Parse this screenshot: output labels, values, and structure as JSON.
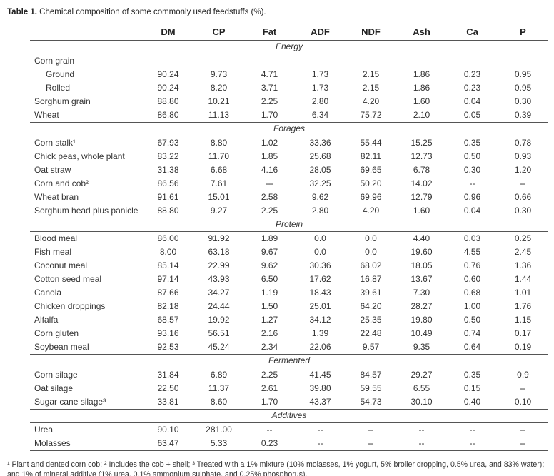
{
  "caption": {
    "label": "Table 1.",
    "text": " Chemical composition of some commonly used feedstuffs (%)."
  },
  "table": {
    "columns": [
      "",
      "DM",
      "CP",
      "Fat",
      "ADF",
      "NDF",
      "Ash",
      "Ca",
      "P"
    ],
    "sections": [
      {
        "name": "Energy",
        "rows": [
          {
            "label": "Corn grain",
            "indent": 0,
            "values": [
              "",
              "",
              "",
              "",
              "",
              "",
              "",
              ""
            ]
          },
          {
            "label": "Ground",
            "indent": 1,
            "values": [
              "90.24",
              "9.73",
              "4.71",
              "1.73",
              "2.15",
              "1.86",
              "0.23",
              "0.95"
            ]
          },
          {
            "label": "Rolled",
            "indent": 1,
            "values": [
              "90.24",
              "8.20",
              "3.71",
              "1.73",
              "2.15",
              "1.86",
              "0.23",
              "0.95"
            ]
          },
          {
            "label": "Sorghum grain",
            "indent": 0,
            "values": [
              "88.80",
              "10.21",
              "2.25",
              "2.80",
              "4.20",
              "1.60",
              "0.04",
              "0.30"
            ]
          },
          {
            "label": "Wheat",
            "indent": 0,
            "values": [
              "86.80",
              "11.13",
              "1.70",
              "6.34",
              "75.72",
              "2.10",
              "0.05",
              "0.39"
            ]
          }
        ]
      },
      {
        "name": "Forages",
        "rows": [
          {
            "label": "Corn stalk¹",
            "indent": 0,
            "values": [
              "67.93",
              "8.80",
              "1.02",
              "33.36",
              "55.44",
              "15.25",
              "0.35",
              "0.78"
            ]
          },
          {
            "label": "Chick peas, whole plant",
            "indent": 0,
            "values": [
              "83.22",
              "11.70",
              "1.85",
              "25.68",
              "82.11",
              "12.73",
              "0.50",
              "0.93"
            ]
          },
          {
            "label": "Oat straw",
            "indent": 0,
            "values": [
              "31.38",
              "6.68",
              "4.16",
              "28.05",
              "69.65",
              "6.78",
              "0.30",
              "1.20"
            ]
          },
          {
            "label": "Corn and cob²",
            "indent": 0,
            "values": [
              "86.56",
              "7.61",
              "---",
              "32.25",
              "50.20",
              "14.02",
              "--",
              "--"
            ]
          },
          {
            "label": "Wheat bran",
            "indent": 0,
            "values": [
              "91.61",
              "15.01",
              "2.58",
              "9.62",
              "69.96",
              "12.79",
              "0.96",
              "0.66"
            ]
          },
          {
            "label": "Sorghum head plus panicle",
            "indent": 0,
            "values": [
              "88.80",
              "9.27",
              "2.25",
              "2.80",
              "4.20",
              "1.60",
              "0.04",
              "0.30"
            ]
          }
        ]
      },
      {
        "name": "Protein",
        "rows": [
          {
            "label": "Blood meal",
            "indent": 0,
            "values": [
              "86.00",
              "91.92",
              "1.89",
              "0.0",
              "0.0",
              "4.40",
              "0.03",
              "0.25"
            ]
          },
          {
            "label": "Fish meal",
            "indent": 0,
            "values": [
              "8.00",
              "63.18",
              "9.67",
              "0.0",
              "0.0",
              "19.60",
              "4.55",
              "2.45"
            ]
          },
          {
            "label": "Coconut meal",
            "indent": 0,
            "values": [
              "85.14",
              "22.99",
              "9.62",
              "30.36",
              "68.02",
              "18.05",
              "0.76",
              "1.36"
            ]
          },
          {
            "label": "Cotton seed meal",
            "indent": 0,
            "values": [
              "97.14",
              "43.93",
              "6.50",
              "17.62",
              "16.87",
              "13.67",
              "0.60",
              "1.44"
            ]
          },
          {
            "label": "Canola",
            "indent": 0,
            "values": [
              "87.66",
              "34.27",
              "1.19",
              "18.43",
              "39.61",
              "7.30",
              "0.68",
              "1.01"
            ]
          },
          {
            "label": "Chicken droppings",
            "indent": 0,
            "values": [
              "82.18",
              "24.44",
              "1.50",
              "25.01",
              "64.20",
              "28.27",
              "1.00",
              "1.76"
            ]
          },
          {
            "label": "Alfalfa",
            "indent": 0,
            "values": [
              "68.57",
              "19.92",
              "1.27",
              "34.12",
              "25.35",
              "19.80",
              "0.50",
              "1.15"
            ]
          },
          {
            "label": "Corn gluten",
            "indent": 0,
            "values": [
              "93.16",
              "56.51",
              "2.16",
              "1.39",
              "22.48",
              "10.49",
              "0.74",
              "0.17"
            ]
          },
          {
            "label": "Soybean meal",
            "indent": 0,
            "values": [
              "92.53",
              "45.24",
              "2.34",
              "22.06",
              "9.57",
              "9.35",
              "0.64",
              "0.19"
            ]
          }
        ]
      },
      {
        "name": "Fermented",
        "rows": [
          {
            "label": "Corn silage",
            "indent": 0,
            "values": [
              "31.84",
              "6.89",
              "2.25",
              "41.45",
              "84.57",
              "29.27",
              "0.35",
              "0.9"
            ]
          },
          {
            "label": "Oat silage",
            "indent": 0,
            "values": [
              "22.50",
              "11.37",
              "2.61",
              "39.80",
              "59.55",
              "6.55",
              "0.15",
              "--"
            ]
          },
          {
            "label": "Sugar cane silage³",
            "indent": 0,
            "values": [
              "33.81",
              "8.60",
              "1.70",
              "43.37",
              "54.73",
              "30.10",
              "0.40",
              "0.10"
            ]
          }
        ]
      },
      {
        "name": "Additives",
        "rows": [
          {
            "label": "Urea",
            "indent": 0,
            "values": [
              "90.10",
              "281.00",
              "--",
              "--",
              "--",
              "--",
              "--",
              "--"
            ]
          },
          {
            "label": "Molasses",
            "indent": 0,
            "values": [
              "63.47",
              "5.33",
              "0.23",
              "--",
              "--",
              "--",
              "--",
              "--"
            ]
          }
        ]
      }
    ]
  },
  "footnotes": {
    "text": "¹ Plant and dented corn cob; ² Includes the cob + shell; ³ Treated with a 1% mixture (10% molasses, 1% yogurt, 5% broiler dropping, 0.5% urea, and 83% water); and 1% of mineral additive (1% urea, 0.1% ammonium sulphate, and 0.25% phosphorus)."
  }
}
